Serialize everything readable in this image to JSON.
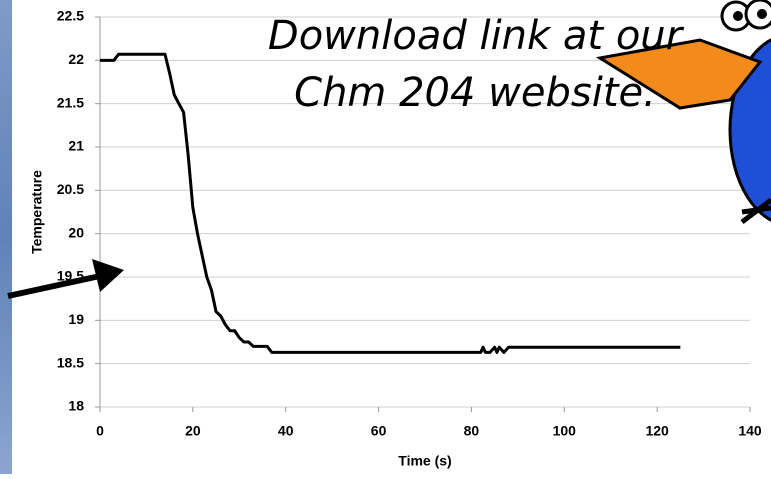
{
  "chart_data": {
    "type": "line",
    "annotations": [
      "Download link at our",
      "Chm 204 website."
    ],
    "xlabel": "Time (s)",
    "ylabel": "Temperature",
    "x": [
      0,
      3,
      4,
      14,
      15,
      16,
      17,
      18,
      19,
      20,
      21,
      22,
      23,
      24,
      25,
      26,
      27,
      28,
      29,
      30,
      31,
      32,
      33,
      36,
      37,
      82,
      82.5,
      83,
      84,
      85,
      85.5,
      86,
      87,
      88,
      125
    ],
    "values": [
      22,
      22,
      22.07,
      22.07,
      21.85,
      21.6,
      21.5,
      21.4,
      20.9,
      20.3,
      20,
      19.75,
      19.5,
      19.35,
      19.1,
      19.05,
      18.95,
      18.88,
      18.88,
      18.8,
      18.75,
      18.75,
      18.7,
      18.7,
      18.63,
      18.63,
      18.69,
      18.63,
      18.63,
      18.69,
      18.63,
      18.69,
      18.63,
      18.69,
      18.69
    ],
    "color": "#000000",
    "xlim": [
      0,
      140
    ],
    "xticks": [
      0,
      20,
      40,
      60,
      80,
      100,
      120,
      140
    ],
    "ylim": [
      18,
      22.5
    ],
    "yticks": [
      18,
      18.5,
      19,
      19.5,
      20,
      20.5,
      21,
      21.5,
      22,
      22.5
    ],
    "grid": true
  }
}
